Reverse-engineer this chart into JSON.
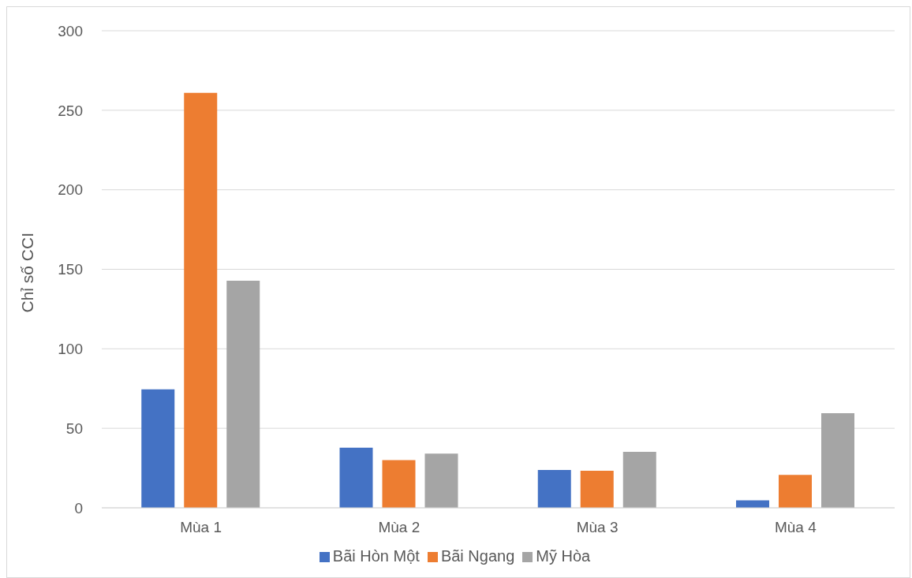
{
  "chart_data": {
    "type": "bar",
    "ylabel": "Chỉ số CCI",
    "categories": [
      "Mùa 1",
      "Mùa 2",
      "Mùa 3",
      "Mùa 4"
    ],
    "series": [
      {
        "name": "Bãi Hòn Một",
        "color": "#4472c4",
        "values": [
          74.5,
          37.8,
          23.8,
          4.7
        ]
      },
      {
        "name": "Bãi Ngang",
        "color": "#ed7d31",
        "values": [
          261,
          30,
          23.3,
          20.7
        ]
      },
      {
        "name": "Mỹ Hòa",
        "color": "#a5a5a5",
        "values": [
          142.8,
          34.1,
          35.2,
          59.5
        ]
      }
    ],
    "ylim": [
      0,
      300
    ],
    "yticks": [
      0,
      50,
      100,
      150,
      200,
      250,
      300
    ],
    "grid": "y",
    "legend": "bottom"
  }
}
